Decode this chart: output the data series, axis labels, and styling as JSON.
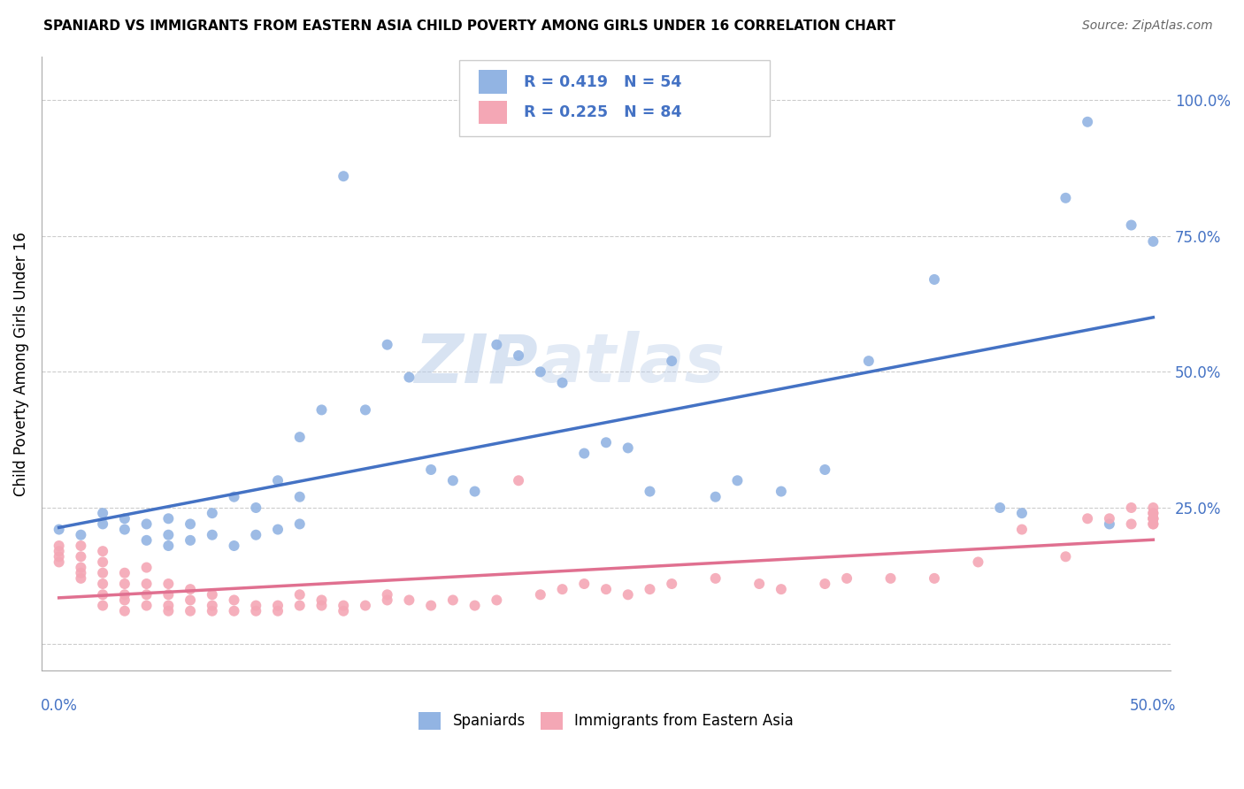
{
  "title": "SPANIARD VS IMMIGRANTS FROM EASTERN ASIA CHILD POVERTY AMONG GIRLS UNDER 16 CORRELATION CHART",
  "source": "Source: ZipAtlas.com",
  "ylabel": "Child Poverty Among Girls Under 16",
  "ylabel_right_labels": [
    "100.0%",
    "75.0%",
    "50.0%",
    "25.0%"
  ],
  "ylabel_right_positions": [
    1.0,
    0.75,
    0.5,
    0.25
  ],
  "legend_blue_label": "R = 0.419   N = 54",
  "legend_pink_label": "R = 0.225   N = 84",
  "legend_bottom_blue": "Spaniards",
  "legend_bottom_pink": "Immigrants from Eastern Asia",
  "blue_color": "#92b4e3",
  "pink_color": "#f4a7b5",
  "blue_line_color": "#4472c4",
  "pink_line_color": "#e07090",
  "watermark": "ZIPatlas",
  "xlim": [
    0.0,
    0.5
  ],
  "ylim": [
    -0.05,
    1.08
  ],
  "blue_scatter_x": [
    0.0,
    0.01,
    0.02,
    0.02,
    0.03,
    0.03,
    0.04,
    0.04,
    0.05,
    0.05,
    0.05,
    0.06,
    0.06,
    0.07,
    0.07,
    0.08,
    0.08,
    0.09,
    0.09,
    0.1,
    0.1,
    0.11,
    0.11,
    0.11,
    0.12,
    0.13,
    0.14,
    0.15,
    0.16,
    0.17,
    0.18,
    0.19,
    0.2,
    0.21,
    0.22,
    0.23,
    0.24,
    0.25,
    0.26,
    0.27,
    0.28,
    0.3,
    0.31,
    0.33,
    0.35,
    0.37,
    0.4,
    0.43,
    0.44,
    0.46,
    0.47,
    0.48,
    0.49,
    0.5
  ],
  "blue_scatter_y": [
    0.21,
    0.2,
    0.22,
    0.24,
    0.21,
    0.23,
    0.19,
    0.22,
    0.18,
    0.2,
    0.23,
    0.19,
    0.22,
    0.2,
    0.24,
    0.18,
    0.27,
    0.2,
    0.25,
    0.21,
    0.3,
    0.22,
    0.27,
    0.38,
    0.43,
    0.86,
    0.43,
    0.55,
    0.49,
    0.32,
    0.3,
    0.28,
    0.55,
    0.53,
    0.5,
    0.48,
    0.35,
    0.37,
    0.36,
    0.28,
    0.52,
    0.27,
    0.3,
    0.28,
    0.32,
    0.52,
    0.67,
    0.25,
    0.24,
    0.82,
    0.96,
    0.22,
    0.77,
    0.74
  ],
  "pink_scatter_x": [
    0.0,
    0.0,
    0.0,
    0.0,
    0.01,
    0.01,
    0.01,
    0.01,
    0.01,
    0.02,
    0.02,
    0.02,
    0.02,
    0.02,
    0.02,
    0.03,
    0.03,
    0.03,
    0.03,
    0.03,
    0.04,
    0.04,
    0.04,
    0.04,
    0.05,
    0.05,
    0.05,
    0.05,
    0.06,
    0.06,
    0.06,
    0.07,
    0.07,
    0.07,
    0.08,
    0.08,
    0.09,
    0.09,
    0.1,
    0.1,
    0.11,
    0.11,
    0.12,
    0.12,
    0.13,
    0.13,
    0.14,
    0.15,
    0.15,
    0.16,
    0.17,
    0.18,
    0.19,
    0.2,
    0.21,
    0.22,
    0.23,
    0.24,
    0.25,
    0.26,
    0.27,
    0.28,
    0.3,
    0.32,
    0.33,
    0.35,
    0.36,
    0.38,
    0.4,
    0.42,
    0.44,
    0.46,
    0.47,
    0.48,
    0.49,
    0.49,
    0.5,
    0.5,
    0.5,
    0.5,
    0.5,
    0.5,
    0.5,
    0.5
  ],
  "pink_scatter_y": [
    0.15,
    0.16,
    0.17,
    0.18,
    0.12,
    0.13,
    0.14,
    0.16,
    0.18,
    0.07,
    0.09,
    0.11,
    0.13,
    0.15,
    0.17,
    0.06,
    0.08,
    0.09,
    0.11,
    0.13,
    0.07,
    0.09,
    0.11,
    0.14,
    0.06,
    0.07,
    0.09,
    0.11,
    0.06,
    0.08,
    0.1,
    0.06,
    0.07,
    0.09,
    0.06,
    0.08,
    0.06,
    0.07,
    0.06,
    0.07,
    0.07,
    0.09,
    0.07,
    0.08,
    0.06,
    0.07,
    0.07,
    0.08,
    0.09,
    0.08,
    0.07,
    0.08,
    0.07,
    0.08,
    0.3,
    0.09,
    0.1,
    0.11,
    0.1,
    0.09,
    0.1,
    0.11,
    0.12,
    0.11,
    0.1,
    0.11,
    0.12,
    0.12,
    0.12,
    0.15,
    0.21,
    0.16,
    0.23,
    0.23,
    0.22,
    0.25,
    0.22,
    0.23,
    0.24,
    0.23,
    0.22,
    0.23,
    0.24,
    0.25
  ]
}
